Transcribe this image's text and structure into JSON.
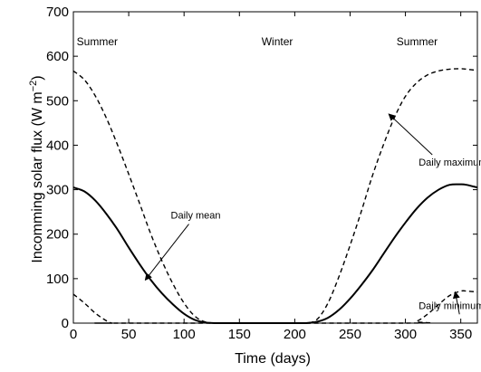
{
  "chart_data": {
    "type": "line",
    "title": "",
    "xlabel": "Time (days)",
    "ylabel": "Incomming solar flux (W m",
    "ylabel_sup": "−2",
    "ylabel_close": ")",
    "xlim": [
      0,
      365
    ],
    "ylim": [
      0,
      700
    ],
    "xticks": [
      0,
      50,
      100,
      150,
      200,
      250,
      300,
      350
    ],
    "yticks": [
      0,
      100,
      200,
      300,
      400,
      500,
      600,
      700
    ],
    "grid": false,
    "series": [
      {
        "name": "Daily mean",
        "style": "solid",
        "x": [
          0,
          10,
          20,
          30,
          40,
          50,
          60,
          70,
          80,
          90,
          100,
          110,
          120,
          130,
          140,
          150,
          160,
          170,
          180,
          190,
          200,
          210,
          220,
          230,
          240,
          250,
          260,
          270,
          280,
          290,
          300,
          310,
          320,
          330,
          340,
          350,
          355,
          365
        ],
        "y": [
          305,
          296,
          275,
          245,
          210,
          170,
          132,
          97,
          67,
          42,
          21,
          7,
          1,
          0,
          0,
          0,
          0,
          0,
          0,
          0,
          0,
          0,
          3,
          12,
          30,
          55,
          85,
          118,
          155,
          192,
          226,
          257,
          282,
          300,
          311,
          312,
          311,
          305
        ]
      },
      {
        "name": "Daily maximum",
        "style": "dashed",
        "x": [
          0,
          10,
          20,
          30,
          40,
          50,
          60,
          70,
          80,
          90,
          100,
          110,
          120,
          130,
          140,
          150,
          160,
          170,
          180,
          190,
          200,
          210,
          220,
          230,
          240,
          250,
          260,
          270,
          280,
          290,
          300,
          310,
          320,
          330,
          340,
          350,
          355,
          365
        ],
        "y": [
          567,
          547,
          510,
          460,
          400,
          335,
          268,
          200,
          140,
          88,
          45,
          15,
          2,
          0,
          0,
          0,
          0,
          0,
          0,
          0,
          0,
          0,
          8,
          45,
          105,
          175,
          250,
          330,
          400,
          462,
          510,
          540,
          558,
          567,
          571,
          572,
          571,
          568
        ]
      },
      {
        "name": "Daily minimum",
        "style": "dashed",
        "x": [
          0,
          10,
          20,
          30,
          35,
          40,
          300,
          310,
          320,
          330,
          340,
          350,
          355,
          365
        ],
        "y": [
          65,
          45,
          22,
          5,
          0,
          0,
          0,
          4,
          20,
          42,
          62,
          72,
          72,
          70
        ]
      }
    ],
    "annotations": [
      {
        "text": "Summer",
        "x": 3,
        "y": 625
      },
      {
        "text": "Winter",
        "x": 170,
        "y": 625
      },
      {
        "text": "Summer",
        "x": 292,
        "y": 625
      },
      {
        "text": "Daily mean",
        "x": 88,
        "y": 235,
        "arrow_to": [
          65,
          97
        ]
      },
      {
        "text": "Daily maximum",
        "x": 312,
        "y": 354,
        "arrow_to": [
          285,
          470
        ]
      },
      {
        "text": "Daily minimum",
        "x": 312,
        "y": 32,
        "arrow_to": [
          345,
          70
        ]
      }
    ]
  }
}
